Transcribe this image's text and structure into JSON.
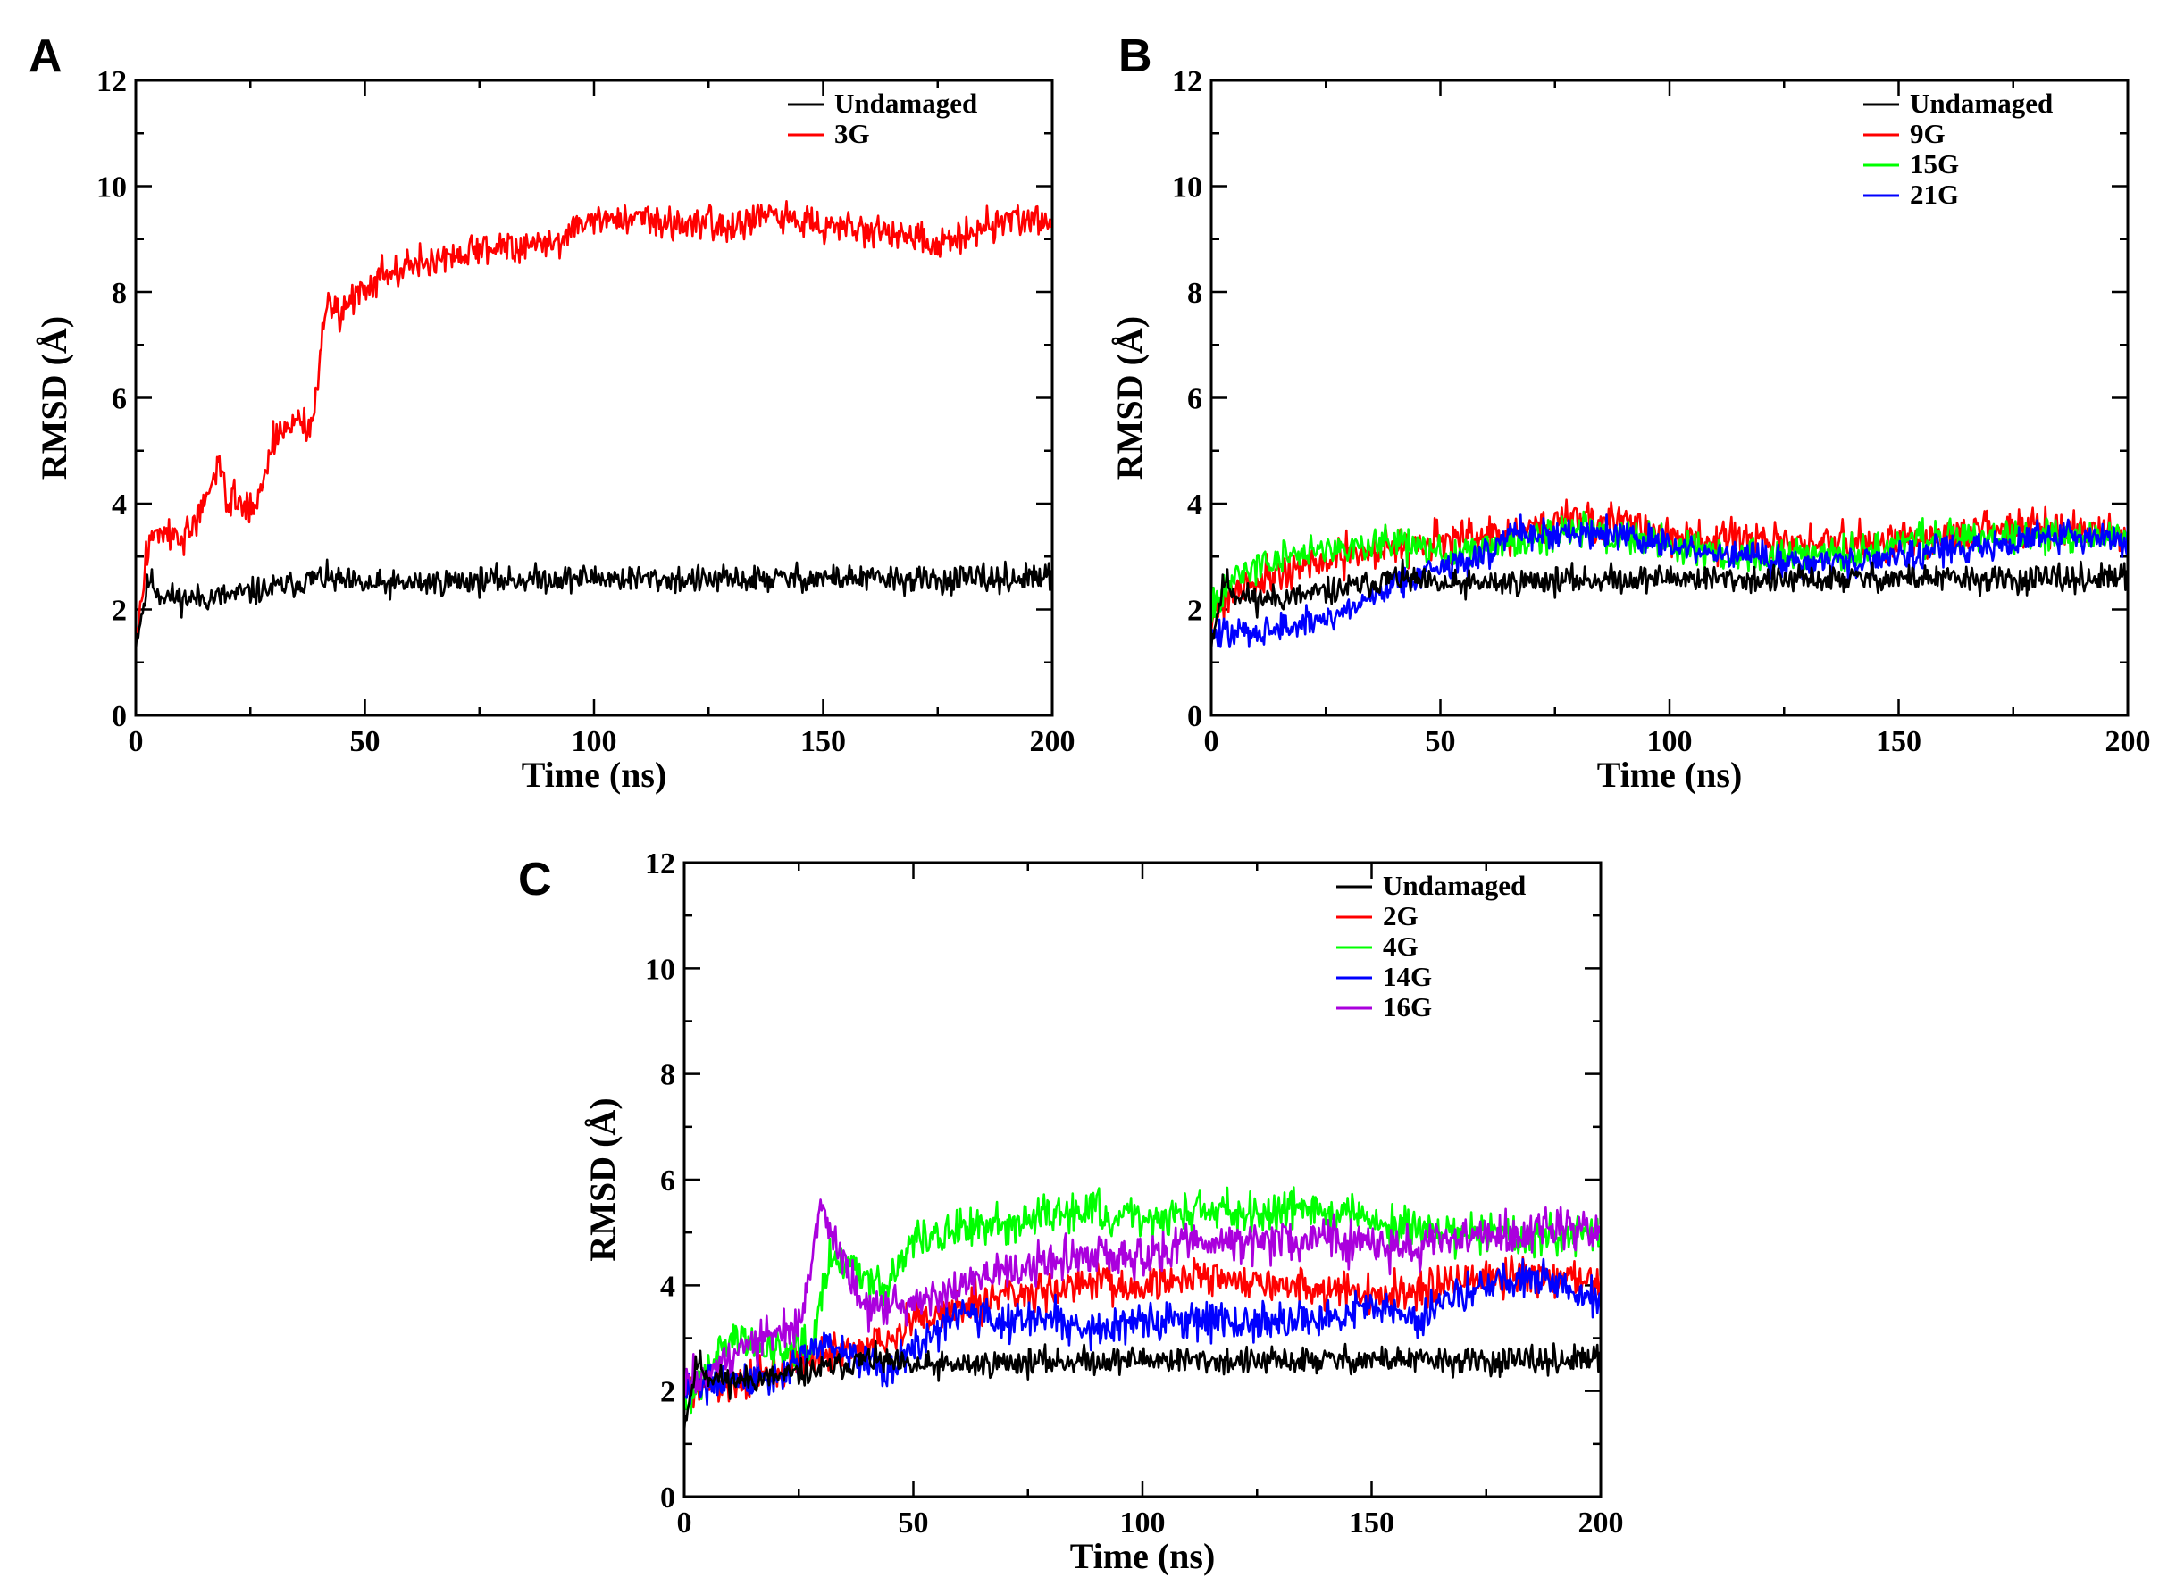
{
  "chart_data": [
    {
      "panel": "A",
      "type": "line",
      "title": "",
      "xlabel": "Time (ns)",
      "ylabel": "RMSD (Å)",
      "xlim": [
        0,
        200
      ],
      "ylim": [
        0,
        12
      ],
      "xticks": [
        0,
        50,
        100,
        150,
        200
      ],
      "yticks": [
        0,
        2,
        4,
        6,
        8,
        10,
        12
      ],
      "legend_position": "top-right",
      "series": [
        {
          "name": "Undamaged",
          "color": "#000000",
          "noise": 0.16,
          "seed": 11,
          "trend": [
            [
              0,
              1.4
            ],
            [
              1,
              1.8
            ],
            [
              3,
              2.6
            ],
            [
              5,
              2.3
            ],
            [
              10,
              2.2
            ],
            [
              20,
              2.25
            ],
            [
              30,
              2.4
            ],
            [
              40,
              2.6
            ],
            [
              50,
              2.45
            ],
            [
              75,
              2.55
            ],
            [
              100,
              2.6
            ],
            [
              125,
              2.55
            ],
            [
              150,
              2.6
            ],
            [
              175,
              2.55
            ],
            [
              200,
              2.6
            ]
          ]
        },
        {
          "name": "3G",
          "color": "#ff0000",
          "noise": 0.2,
          "seed": 3,
          "trend": [
            [
              0,
              1.3
            ],
            [
              1,
              2.0
            ],
            [
              3,
              3.4
            ],
            [
              5,
              3.5
            ],
            [
              10,
              3.3
            ],
            [
              15,
              3.9
            ],
            [
              18,
              4.8
            ],
            [
              20,
              4.1
            ],
            [
              25,
              3.9
            ],
            [
              27,
              4.2
            ],
            [
              30,
              5.2
            ],
            [
              35,
              5.6
            ],
            [
              38,
              5.4
            ],
            [
              40,
              6.5
            ],
            [
              42,
              7.9
            ],
            [
              45,
              7.6
            ],
            [
              50,
              8.2
            ],
            [
              60,
              8.5
            ],
            [
              70,
              8.7
            ],
            [
              80,
              8.9
            ],
            [
              90,
              8.9
            ],
            [
              100,
              9.4
            ],
            [
              110,
              9.4
            ],
            [
              120,
              9.3
            ],
            [
              130,
              9.3
            ],
            [
              140,
              9.4
            ],
            [
              150,
              9.3
            ],
            [
              160,
              9.2
            ],
            [
              170,
              9.0
            ],
            [
              175,
              8.8
            ],
            [
              180,
              9.1
            ],
            [
              190,
              9.4
            ],
            [
              200,
              9.3
            ]
          ]
        }
      ]
    },
    {
      "panel": "B",
      "type": "line",
      "title": "",
      "xlabel": "Time (ns)",
      "ylabel": "RMSD (Å)",
      "xlim": [
        0,
        200
      ],
      "ylim": [
        0,
        12
      ],
      "xticks": [
        0,
        50,
        100,
        150,
        200
      ],
      "yticks": [
        0,
        2,
        4,
        6,
        8,
        10,
        12
      ],
      "legend_position": "top-right",
      "series": [
        {
          "name": "Undamaged",
          "color": "#000000",
          "noise": 0.16,
          "seed": 11,
          "trend": [
            [
              0,
              1.4
            ],
            [
              1,
              1.8
            ],
            [
              3,
              2.6
            ],
            [
              5,
              2.3
            ],
            [
              10,
              2.2
            ],
            [
              20,
              2.25
            ],
            [
              30,
              2.4
            ],
            [
              40,
              2.6
            ],
            [
              50,
              2.45
            ],
            [
              75,
              2.55
            ],
            [
              100,
              2.6
            ],
            [
              125,
              2.55
            ],
            [
              150,
              2.6
            ],
            [
              175,
              2.55
            ],
            [
              200,
              2.6
            ]
          ]
        },
        {
          "name": "9G",
          "color": "#ff0000",
          "noise": 0.22,
          "seed": 21,
          "trend": [
            [
              0,
              1.9
            ],
            [
              5,
              2.4
            ],
            [
              15,
              2.7
            ],
            [
              25,
              2.9
            ],
            [
              40,
              3.2
            ],
            [
              50,
              3.3
            ],
            [
              65,
              3.4
            ],
            [
              80,
              3.8
            ],
            [
              90,
              3.6
            ],
            [
              100,
              3.4
            ],
            [
              110,
              3.3
            ],
            [
              120,
              3.3
            ],
            [
              130,
              3.2
            ],
            [
              140,
              3.3
            ],
            [
              150,
              3.3
            ],
            [
              160,
              3.4
            ],
            [
              170,
              3.5
            ],
            [
              180,
              3.6
            ],
            [
              190,
              3.5
            ],
            [
              200,
              3.4
            ]
          ]
        },
        {
          "name": "15G",
          "color": "#00ff00",
          "noise": 0.2,
          "seed": 34,
          "trend": [
            [
              0,
              2.0
            ],
            [
              5,
              2.6
            ],
            [
              15,
              3.0
            ],
            [
              25,
              3.1
            ],
            [
              40,
              3.3
            ],
            [
              50,
              3.1
            ],
            [
              65,
              3.2
            ],
            [
              80,
              3.5
            ],
            [
              95,
              3.3
            ],
            [
              110,
              3.1
            ],
            [
              120,
              3.0
            ],
            [
              130,
              3.0
            ],
            [
              145,
              3.2
            ],
            [
              160,
              3.4
            ],
            [
              175,
              3.4
            ],
            [
              190,
              3.4
            ],
            [
              200,
              3.4
            ]
          ]
        },
        {
          "name": "21G",
          "color": "#0000ff",
          "noise": 0.18,
          "seed": 47,
          "trend": [
            [
              0,
              1.5
            ],
            [
              10,
              1.6
            ],
            [
              20,
              1.7
            ],
            [
              30,
              2.0
            ],
            [
              40,
              2.5
            ],
            [
              50,
              2.8
            ],
            [
              60,
              3.0
            ],
            [
              65,
              3.5
            ],
            [
              75,
              3.4
            ],
            [
              85,
              3.5
            ],
            [
              95,
              3.3
            ],
            [
              105,
              3.1
            ],
            [
              115,
              3.0
            ],
            [
              130,
              2.9
            ],
            [
              140,
              2.9
            ],
            [
              155,
              3.1
            ],
            [
              170,
              3.2
            ],
            [
              185,
              3.4
            ],
            [
              200,
              3.3
            ]
          ]
        }
      ]
    },
    {
      "panel": "C",
      "type": "line",
      "title": "",
      "xlabel": "Time (ns)",
      "ylabel": "RMSD (Å)",
      "xlim": [
        0,
        200
      ],
      "ylim": [
        0,
        12
      ],
      "xticks": [
        0,
        50,
        100,
        150,
        200
      ],
      "yticks": [
        0,
        2,
        4,
        6,
        8,
        10,
        12
      ],
      "legend_position": "top-right",
      "series": [
        {
          "name": "Undamaged",
          "color": "#000000",
          "noise": 0.16,
          "seed": 11,
          "trend": [
            [
              0,
              1.4
            ],
            [
              1,
              1.8
            ],
            [
              3,
              2.6
            ],
            [
              5,
              2.3
            ],
            [
              10,
              2.2
            ],
            [
              20,
              2.25
            ],
            [
              30,
              2.4
            ],
            [
              40,
              2.6
            ],
            [
              50,
              2.45
            ],
            [
              75,
              2.55
            ],
            [
              100,
              2.6
            ],
            [
              125,
              2.55
            ],
            [
              150,
              2.6
            ],
            [
              175,
              2.55
            ],
            [
              200,
              2.6
            ]
          ]
        },
        {
          "name": "2G",
          "color": "#ff0000",
          "noise": 0.22,
          "seed": 52,
          "trend": [
            [
              0,
              2.0
            ],
            [
              10,
              2.2
            ],
            [
              20,
              2.4
            ],
            [
              30,
              2.7
            ],
            [
              40,
              2.8
            ],
            [
              50,
              3.3
            ],
            [
              60,
              3.6
            ],
            [
              70,
              3.8
            ],
            [
              80,
              3.9
            ],
            [
              90,
              4.1
            ],
            [
              100,
              4.0
            ],
            [
              110,
              4.2
            ],
            [
              120,
              4.1
            ],
            [
              130,
              4.0
            ],
            [
              140,
              3.9
            ],
            [
              150,
              3.8
            ],
            [
              160,
              3.9
            ],
            [
              170,
              4.1
            ],
            [
              180,
              4.2
            ],
            [
              190,
              4.1
            ],
            [
              200,
              4.0
            ]
          ]
        },
        {
          "name": "4G",
          "color": "#00ff00",
          "noise": 0.24,
          "seed": 63,
          "trend": [
            [
              0,
              1.6
            ],
            [
              5,
              2.5
            ],
            [
              10,
              3.0
            ],
            [
              20,
              2.8
            ],
            [
              28,
              3.0
            ],
            [
              32,
              4.6
            ],
            [
              40,
              4.2
            ],
            [
              45,
              4.0
            ],
            [
              50,
              4.9
            ],
            [
              60,
              5.0
            ],
            [
              75,
              5.3
            ],
            [
              90,
              5.4
            ],
            [
              100,
              5.2
            ],
            [
              110,
              5.4
            ],
            [
              120,
              5.4
            ],
            [
              135,
              5.5
            ],
            [
              145,
              5.4
            ],
            [
              155,
              5.1
            ],
            [
              170,
              5.0
            ],
            [
              185,
              4.9
            ],
            [
              200,
              5.0
            ]
          ]
        },
        {
          "name": "14G",
          "color": "#0000ff",
          "noise": 0.22,
          "seed": 74,
          "trend": [
            [
              0,
              2.1
            ],
            [
              10,
              2.2
            ],
            [
              20,
              2.3
            ],
            [
              30,
              2.9
            ],
            [
              40,
              2.5
            ],
            [
              45,
              2.4
            ],
            [
              50,
              2.8
            ],
            [
              60,
              3.5
            ],
            [
              70,
              3.3
            ],
            [
              80,
              3.4
            ],
            [
              90,
              3.1
            ],
            [
              100,
              3.3
            ],
            [
              110,
              3.4
            ],
            [
              120,
              3.3
            ],
            [
              130,
              3.3
            ],
            [
              140,
              3.4
            ],
            [
              150,
              3.6
            ],
            [
              155,
              3.5
            ],
            [
              160,
              3.3
            ],
            [
              165,
              3.7
            ],
            [
              175,
              4.0
            ],
            [
              185,
              4.1
            ],
            [
              195,
              3.9
            ],
            [
              200,
              3.6
            ]
          ]
        },
        {
          "name": "16G",
          "color": "#aa00dd",
          "noise": 0.24,
          "seed": 85,
          "trend": [
            [
              0,
              2.1
            ],
            [
              8,
              2.6
            ],
            [
              15,
              2.9
            ],
            [
              25,
              3.2
            ],
            [
              30,
              5.4
            ],
            [
              34,
              4.6
            ],
            [
              40,
              3.5
            ],
            [
              50,
              3.6
            ],
            [
              60,
              4.0
            ],
            [
              70,
              4.2
            ],
            [
              80,
              4.4
            ],
            [
              90,
              4.6
            ],
            [
              100,
              4.5
            ],
            [
              110,
              4.8
            ],
            [
              120,
              4.8
            ],
            [
              130,
              4.9
            ],
            [
              140,
              4.9
            ],
            [
              150,
              4.8
            ],
            [
              160,
              4.7
            ],
            [
              170,
              4.9
            ],
            [
              180,
              5.0
            ],
            [
              190,
              5.1
            ],
            [
              200,
              5.1
            ]
          ]
        }
      ]
    }
  ]
}
